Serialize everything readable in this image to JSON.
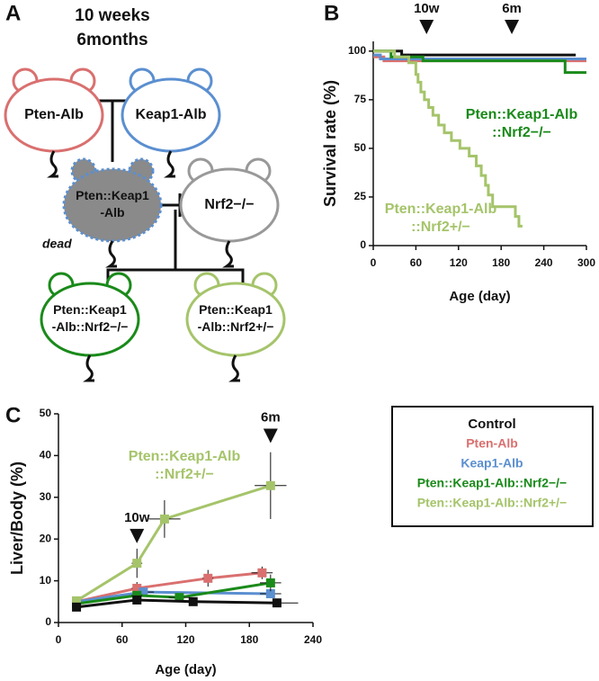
{
  "panel_label": "A",
  "diagram": {
    "title_lines": [
      "10 weeks",
      "6months"
    ],
    "nodes": [
      {
        "lines": [
          "Pten-Alb"
        ],
        "color": "#d9706f"
      },
      {
        "lines": [
          "Keap1-Alb"
        ],
        "color": "#5b8fd0"
      },
      {
        "lines": [
          "Pten::Keap1",
          "-Alb"
        ],
        "color": "#5b8fd0",
        "note": "dead"
      },
      {
        "lines": [
          "Nrf2−/−"
        ],
        "color": "#999999"
      },
      {
        "lines": [
          "Pten::Keap1",
          "-Alb::Nrf2−/−"
        ],
        "color": "#1a8a1a"
      },
      {
        "lines": [
          "Pten::Keap1",
          "-Alb::Nrf2+/−"
        ],
        "color": "#a5c46a"
      }
    ]
  },
  "chart_data": [
    {
      "type": "line",
      "panel_label": "B",
      "x_label": "Age (day)",
      "y_label": "Survival rate (%)",
      "xlim": [
        0,
        300
      ],
      "xticks": [
        0,
        60,
        120,
        180,
        240,
        300
      ],
      "ylim": [
        0,
        105
      ],
      "yticks": [
        0,
        25,
        50,
        75,
        100
      ],
      "markers": [
        {
          "label": "10w",
          "x": 75
        },
        {
          "label": "6m",
          "x": 195
        }
      ],
      "series_labels": [
        {
          "lines": [
            "Pten::Keap1-Alb",
            "::Nrf2−/−"
          ],
          "color": "#1a8a1a"
        },
        {
          "lines": [
            "Pten::Keap1-Alb",
            "::Nrf2+/−"
          ],
          "color": "#a5c46a"
        }
      ],
      "series": [
        {
          "color": "#d9706f",
          "x": [
            0,
            15,
            15,
            300
          ],
          "values": [
            97,
            97,
            95,
            95
          ]
        },
        {
          "color": "#5b8fd0",
          "x": [
            0,
            10,
            10,
            300
          ],
          "values": [
            98,
            98,
            96,
            96
          ]
        },
        {
          "color": "#111111",
          "x": [
            0,
            40,
            40,
            285
          ],
          "values": [
            100,
            100,
            98,
            98
          ]
        },
        {
          "color": "#1a8a1a",
          "x": [
            0,
            25,
            25,
            70,
            70,
            270,
            270,
            300
          ],
          "values": [
            100,
            100,
            97,
            97,
            95,
            95,
            89,
            89
          ]
        },
        {
          "color": "#a5c46a",
          "x": [
            0,
            30,
            30,
            50,
            50,
            60,
            60,
            63,
            63,
            67,
            67,
            72,
            72,
            78,
            78,
            84,
            84,
            92,
            92,
            100,
            100,
            110,
            110,
            122,
            122,
            135,
            135,
            145,
            145,
            152,
            152,
            158,
            158,
            162,
            162,
            168,
            168,
            200,
            200,
            205,
            205,
            210
          ],
          "values": [
            100,
            100,
            97,
            97,
            94,
            94,
            88,
            88,
            84,
            84,
            79,
            79,
            75,
            75,
            71,
            71,
            67,
            67,
            62,
            62,
            58,
            58,
            54,
            54,
            50,
            50,
            46,
            46,
            41,
            41,
            36,
            36,
            31,
            31,
            26,
            26,
            20,
            20,
            15,
            15,
            10,
            10
          ]
        }
      ]
    },
    {
      "type": "line",
      "panel_label": "C",
      "x_label": "Age (day)",
      "y_label": "Liver/Body (%)",
      "xlim": [
        0,
        240
      ],
      "xticks": [
        0,
        60,
        120,
        180,
        240
      ],
      "ylim": [
        0,
        50
      ],
      "yticks": [
        0,
        10,
        20,
        30,
        40,
        50
      ],
      "markers": [
        {
          "label": "10w",
          "x": 74,
          "y": 19
        },
        {
          "label": "6m",
          "x": 200,
          "y": 43
        }
      ],
      "series_labels": [
        {
          "lines": [
            "Pten::Keap1-Alb",
            "::Nrf2+/−"
          ],
          "color": "#a5c46a"
        }
      ],
      "legend": "outside-right",
      "legend_title": "Control",
      "series": [
        {
          "name": "Pten-Alb",
          "color": "#d9706f",
          "x": [
            17,
            74,
            141,
            192
          ],
          "values": [
            5,
            8.2,
            10.6,
            11.9
          ],
          "yerr": [
            0.5,
            1.5,
            2,
            1.5
          ],
          "xerr": [
            0,
            5,
            5,
            10
          ]
        },
        {
          "name": "Keap1-Alb",
          "color": "#5b8fd0",
          "x": [
            17,
            80,
            200
          ],
          "values": [
            5,
            7.3,
            6.9
          ],
          "yerr": [
            0.5,
            1,
            1
          ],
          "xerr": [
            0,
            10,
            10
          ]
        },
        {
          "name": "Pten::Keap1-Alb::Nrf2−/−",
          "color": "#1a8a1a",
          "x": [
            17,
            74,
            114,
            200
          ],
          "values": [
            4.5,
            6.5,
            6,
            9.5
          ],
          "yerr": [
            0.5,
            1,
            1,
            2
          ],
          "xerr": [
            0,
            5,
            10,
            10
          ]
        },
        {
          "name": "Pten::Keap1-Alb::Nrf2+/−",
          "color": "#a5c46a",
          "x": [
            17,
            74,
            100,
            200
          ],
          "values": [
            5.2,
            14.2,
            24.8,
            32.8
          ],
          "yerr": [
            0.5,
            3.5,
            4.5,
            8
          ],
          "xerr": [
            0,
            5,
            15,
            15
          ]
        },
        {
          "name": "Control",
          "color": "#111111",
          "x": [
            17,
            74,
            127,
            206
          ],
          "values": [
            3.7,
            5.4,
            5,
            4.7
          ],
          "yerr": [
            0.5,
            0.5,
            0.5,
            0.5
          ],
          "xerr": [
            0,
            5,
            15,
            20
          ]
        }
      ]
    }
  ]
}
